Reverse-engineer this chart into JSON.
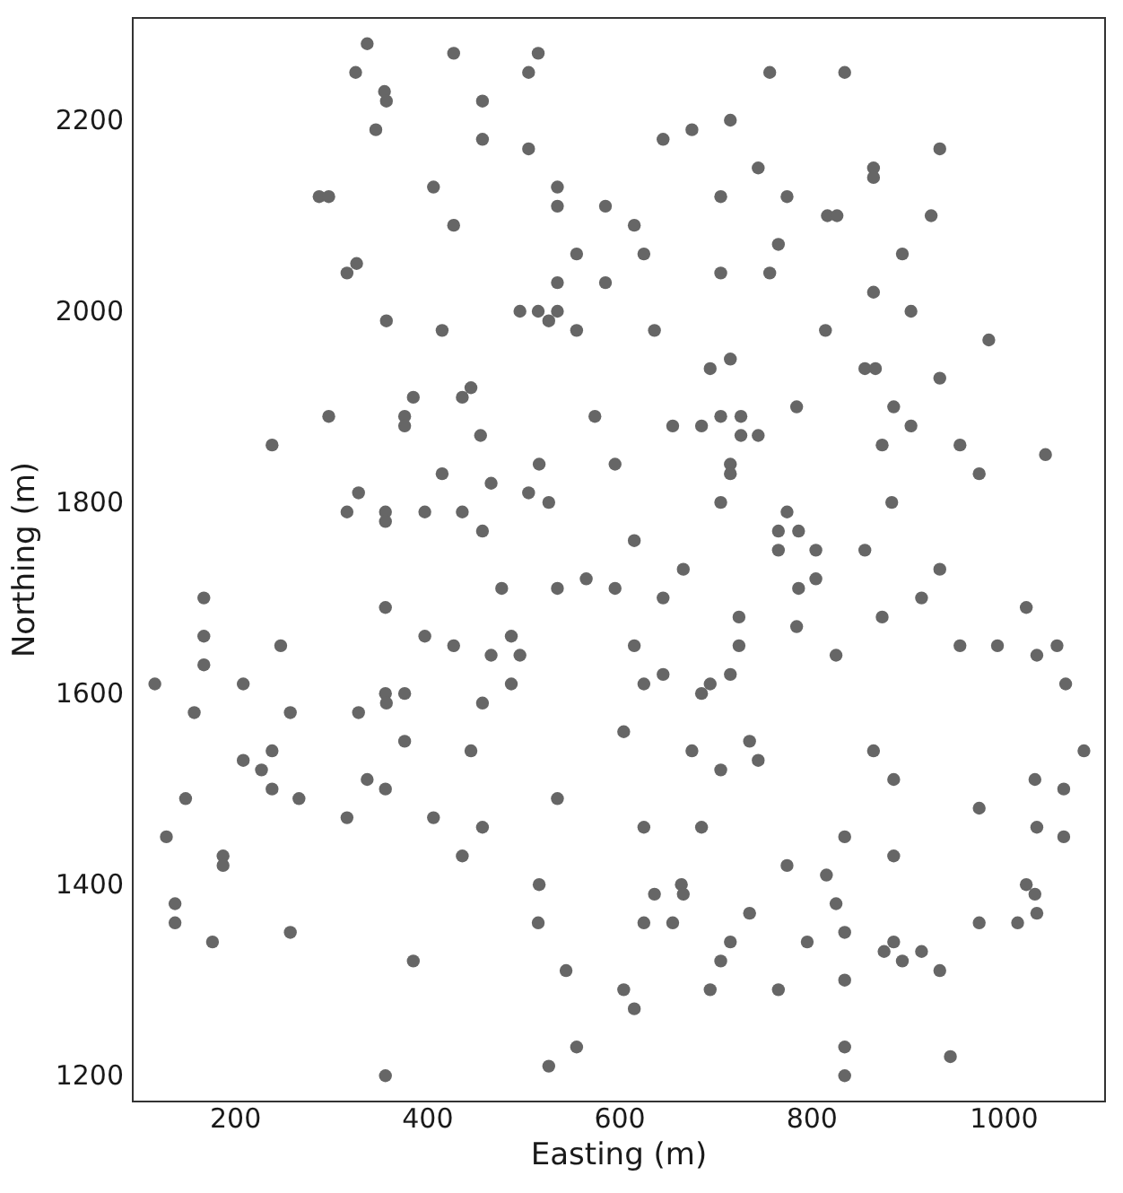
{
  "chart_data": {
    "type": "scatter",
    "xlabel": "Easting (m)",
    "ylabel": "Northing (m)",
    "color": "#666666",
    "marker": "circle",
    "xlim": [
      93,
      1105
    ],
    "ylim": [
      1173,
      2307
    ],
    "xticks": [
      200,
      400,
      600,
      800,
      1000
    ],
    "yticks": [
      1200,
      1400,
      1600,
      1800,
      2000,
      2200
    ],
    "x": [
      337,
      427,
      515,
      325,
      505,
      355,
      357,
      457,
      346,
      457,
      505,
      287,
      297,
      406,
      535,
      535,
      585,
      427,
      555,
      326,
      316,
      535,
      585,
      496,
      515,
      535,
      526,
      357,
      415,
      555,
      756,
      834,
      715,
      675,
      645,
      933,
      744,
      864,
      864,
      705,
      774,
      816,
      826,
      924,
      615,
      765,
      625,
      894,
      705,
      756,
      864,
      903,
      636,
      814,
      984,
      715,
      694,
      855,
      866,
      933,
      445,
      385,
      436,
      297,
      376,
      376,
      574,
      455,
      238,
      516,
      595,
      415,
      466,
      328,
      505,
      526,
      316,
      356,
      397,
      436,
      356,
      457,
      565,
      477,
      535,
      595,
      167,
      356,
      167,
      397,
      487,
      247,
      427,
      466,
      496,
      167,
      116,
      208,
      487,
      356,
      376,
      357,
      457,
      157,
      257,
      328,
      604,
      376,
      784,
      885,
      655,
      685,
      705,
      726,
      726,
      744,
      903,
      873,
      954,
      1043,
      974,
      715,
      715,
      705,
      883,
      774,
      765,
      786,
      615,
      765,
      804,
      855,
      666,
      933,
      645,
      786,
      804,
      914,
      1023,
      724,
      873,
      784,
      615,
      724,
      954,
      993,
      1055,
      825,
      1034,
      645,
      715,
      625,
      694,
      685,
      1064,
      735,
      238,
      445,
      208,
      227,
      337,
      238,
      356,
      148,
      266,
      535,
      316,
      406,
      457,
      128,
      436,
      187,
      187,
      516,
      137,
      137,
      515,
      176,
      257,
      385,
      544,
      604,
      555,
      526,
      356,
      675,
      744,
      705,
      864,
      1083,
      885,
      1032,
      1062,
      974,
      625,
      685,
      1034,
      834,
      1062,
      885,
      774,
      815,
      1023,
      636,
      664,
      666,
      1032,
      825,
      735,
      1034,
      625,
      655,
      974,
      1014,
      834,
      715,
      795,
      885,
      875,
      894,
      914,
      705,
      933,
      615,
      694,
      765,
      834,
      834,
      834,
      944
    ],
    "values": [
      2280,
      2270,
      2270,
      2250,
      2250,
      2230,
      2220,
      2220,
      2190,
      2180,
      2170,
      2120,
      2120,
      2130,
      2130,
      2110,
      2110,
      2090,
      2060,
      2050,
      2040,
      2030,
      2030,
      2000,
      2000,
      2000,
      1990,
      1990,
      1980,
      1980,
      2250,
      2250,
      2200,
      2190,
      2180,
      2170,
      2150,
      2150,
      2140,
      2120,
      2120,
      2100,
      2100,
      2100,
      2090,
      2070,
      2060,
      2060,
      2040,
      2040,
      2020,
      2000,
      1980,
      1980,
      1970,
      1950,
      1940,
      1940,
      1940,
      1930,
      1920,
      1910,
      1910,
      1890,
      1890,
      1880,
      1890,
      1870,
      1860,
      1840,
      1840,
      1830,
      1820,
      1810,
      1810,
      1800,
      1790,
      1790,
      1790,
      1790,
      1780,
      1770,
      1720,
      1710,
      1710,
      1710,
      1700,
      1690,
      1660,
      1660,
      1660,
      1650,
      1650,
      1640,
      1640,
      1630,
      1610,
      1610,
      1610,
      1600,
      1600,
      1590,
      1590,
      1580,
      1580,
      1580,
      1560,
      1550,
      1900,
      1900,
      1880,
      1880,
      1890,
      1890,
      1870,
      1870,
      1880,
      1860,
      1860,
      1850,
      1830,
      1840,
      1830,
      1800,
      1800,
      1790,
      1770,
      1770,
      1760,
      1750,
      1750,
      1750,
      1730,
      1730,
      1700,
      1710,
      1720,
      1700,
      1690,
      1680,
      1680,
      1670,
      1650,
      1650,
      1650,
      1650,
      1650,
      1640,
      1640,
      1620,
      1620,
      1610,
      1610,
      1600,
      1610,
      1550,
      1540,
      1540,
      1530,
      1520,
      1510,
      1500,
      1500,
      1490,
      1490,
      1490,
      1470,
      1470,
      1460,
      1450,
      1430,
      1430,
      1420,
      1400,
      1380,
      1360,
      1360,
      1340,
      1350,
      1320,
      1310,
      1290,
      1230,
      1210,
      1200,
      1540,
      1530,
      1520,
      1540,
      1540,
      1510,
      1510,
      1500,
      1480,
      1460,
      1460,
      1460,
      1450,
      1450,
      1430,
      1420,
      1410,
      1400,
      1390,
      1400,
      1390,
      1390,
      1380,
      1370,
      1370,
      1360,
      1360,
      1360,
      1360,
      1350,
      1340,
      1340,
      1340,
      1330,
      1320,
      1330,
      1320,
      1310,
      1270,
      1290,
      1290,
      1300,
      1230,
      1200,
      1220
    ]
  }
}
